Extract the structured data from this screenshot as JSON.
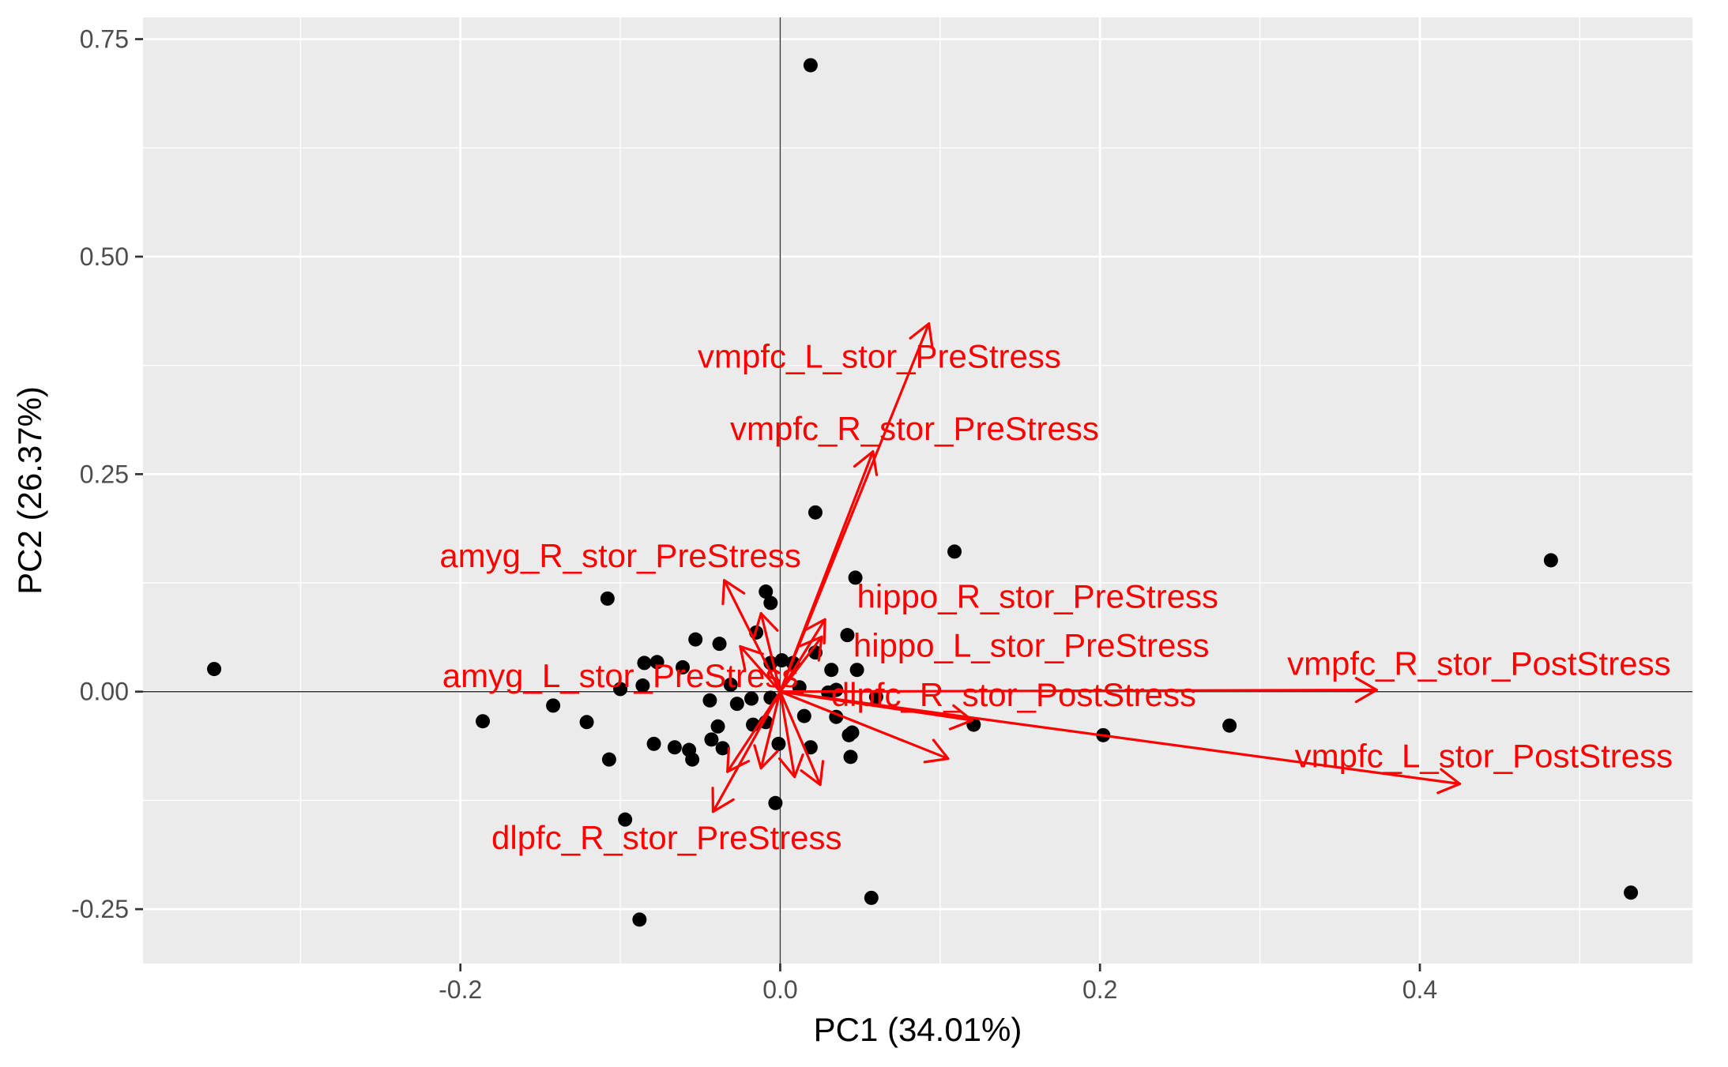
{
  "chart_data": {
    "type": "scatter",
    "title": "",
    "xlabel": "PC1 (34.01%)",
    "ylabel": "PC2 (26.37%)",
    "xlim": [
      -0.3985,
      0.5705
    ],
    "ylim": [
      -0.3125,
      0.775
    ],
    "x_ticks": [
      {
        "value": -0.2,
        "label": "-0.2"
      },
      {
        "value": 0.0,
        "label": "0.0"
      },
      {
        "value": 0.2,
        "label": "0.2"
      },
      {
        "value": 0.4,
        "label": "0.4"
      }
    ],
    "y_ticks": [
      {
        "value": -0.25,
        "label": "-0.25"
      },
      {
        "value": 0.0,
        "label": "0.00"
      },
      {
        "value": 0.25,
        "label": "0.25"
      },
      {
        "value": 0.5,
        "label": "0.50"
      },
      {
        "value": 0.75,
        "label": "0.75"
      }
    ],
    "grid": true,
    "legend": "none",
    "colors": {
      "panel": "#ebebeb",
      "grid": "#ffffff",
      "points": "#000000",
      "loadings": "#ff0000",
      "zero_lines": "#333333"
    },
    "points": [
      {
        "x": 0.019,
        "y": 0.72
      },
      {
        "x": -0.354,
        "y": 0.026
      },
      {
        "x": 0.022,
        "y": 0.206
      },
      {
        "x": 0.109,
        "y": 0.161
      },
      {
        "x": -0.108,
        "y": 0.107
      },
      {
        "x": 0.047,
        "y": 0.131
      },
      {
        "x": -0.009,
        "y": 0.115
      },
      {
        "x": -0.006,
        "y": 0.102
      },
      {
        "x": -0.015,
        "y": 0.068
      },
      {
        "x": 0.042,
        "y": 0.065
      },
      {
        "x": -0.053,
        "y": 0.06
      },
      {
        "x": -0.038,
        "y": 0.055
      },
      {
        "x": 0.022,
        "y": 0.045
      },
      {
        "x": -0.085,
        "y": 0.033
      },
      {
        "x": -0.077,
        "y": 0.034
      },
      {
        "x": -0.006,
        "y": 0.033
      },
      {
        "x": 0.001,
        "y": 0.036
      },
      {
        "x": 0.008,
        "y": 0.033
      },
      {
        "x": -0.061,
        "y": 0.028
      },
      {
        "x": 0.032,
        "y": 0.025
      },
      {
        "x": 0.048,
        "y": 0.025
      },
      {
        "x": -0.086,
        "y": 0.007
      },
      {
        "x": -0.1,
        "y": 0.003
      },
      {
        "x": -0.031,
        "y": 0.008
      },
      {
        "x": 0.012,
        "y": 0.005
      },
      {
        "x": 0.03,
        "y": -0.001
      },
      {
        "x": 0.035,
        "y": 0.002
      },
      {
        "x": -0.018,
        "y": -0.008
      },
      {
        "x": -0.027,
        "y": -0.014
      },
      {
        "x": -0.006,
        "y": -0.007
      },
      {
        "x": 0.06,
        "y": -0.006
      },
      {
        "x": -0.044,
        "y": -0.01
      },
      {
        "x": -0.142,
        "y": -0.016
      },
      {
        "x": -0.121,
        "y": -0.035
      },
      {
        "x": -0.186,
        "y": -0.034
      },
      {
        "x": 0.015,
        "y": -0.028
      },
      {
        "x": 0.035,
        "y": -0.029
      },
      {
        "x": -0.009,
        "y": -0.035
      },
      {
        "x": -0.017,
        "y": -0.038
      },
      {
        "x": -0.039,
        "y": -0.04
      },
      {
        "x": 0.045,
        "y": -0.047
      },
      {
        "x": 0.043,
        "y": -0.05
      },
      {
        "x": -0.043,
        "y": -0.055
      },
      {
        "x": 0.121,
        "y": -0.038
      },
      {
        "x": 0.202,
        "y": -0.05
      },
      {
        "x": 0.281,
        "y": -0.039
      },
      {
        "x": -0.079,
        "y": -0.06
      },
      {
        "x": -0.066,
        "y": -0.064
      },
      {
        "x": -0.057,
        "y": -0.067
      },
      {
        "x": -0.036,
        "y": -0.065
      },
      {
        "x": -0.001,
        "y": -0.06
      },
      {
        "x": 0.019,
        "y": -0.064
      },
      {
        "x": -0.055,
        "y": -0.078
      },
      {
        "x": -0.107,
        "y": -0.078
      },
      {
        "x": 0.044,
        "y": -0.075
      },
      {
        "x": -0.003,
        "y": -0.128
      },
      {
        "x": -0.097,
        "y": -0.147
      },
      {
        "x": 0.057,
        "y": -0.237
      },
      {
        "x": -0.088,
        "y": -0.262
      },
      {
        "x": 0.482,
        "y": 0.151
      },
      {
        "x": 0.532,
        "y": -0.231
      }
    ],
    "loadings": [
      {
        "name": "vmpfc_L_stor_PreStress",
        "x": 0.093,
        "y": 0.423
      },
      {
        "name": "vmpfc_R_stor_PreStress",
        "x": 0.058,
        "y": 0.276
      },
      {
        "name": "amyg_R_stor_PreStress",
        "x": -0.035,
        "y": 0.128
      },
      {
        "name": "hippo_R_stor_PreStress",
        "x": -0.012,
        "y": 0.09
      },
      {
        "name": "hippo_L_stor_PreStress",
        "x": 0.028,
        "y": 0.083
      },
      {
        "name": "vmpfc_R_stor_PostStress",
        "x": 0.373,
        "y": 0.002
      },
      {
        "name": "amyg_L_stor_PreStress",
        "x": -0.025,
        "y": 0.052
      },
      {
        "name": "dlpfc_R_stor_PostStress",
        "x": 0.12,
        "y": -0.033
      },
      {
        "name": "vmpfc_L_stor_PostStress",
        "x": 0.425,
        "y": -0.106
      },
      {
        "name": "dlpfc_R_stor_PreStress",
        "x": -0.042,
        "y": -0.138
      },
      {
        "name": "",
        "x": 0.105,
        "y": -0.077
      },
      {
        "name": "",
        "x": -0.033,
        "y": -0.092
      },
      {
        "name": "",
        "x": 0.025,
        "y": -0.107
      },
      {
        "name": "",
        "x": 0.009,
        "y": -0.098
      },
      {
        "name": "",
        "x": 0.026,
        "y": 0.063
      },
      {
        "name": "",
        "x": -0.012,
        "y": -0.088
      }
    ],
    "loading_labels": [
      {
        "text": "vmpfc_L_stor_PreStress",
        "x": 0.062,
        "y": 0.385
      },
      {
        "text": "vmpfc_R_stor_PreStress",
        "x": 0.084,
        "y": 0.302
      },
      {
        "text": "amyg_R_stor_PreStress",
        "x": -0.1,
        "y": 0.156
      },
      {
        "text": "hippo_R_stor_PreStress",
        "x": 0.161,
        "y": 0.109
      },
      {
        "text": "hippo_L_stor_PreStress",
        "x": 0.157,
        "y": 0.053
      },
      {
        "text": "vmpfc_R_stor_PostStress",
        "x": 0.437,
        "y": 0.032
      },
      {
        "text": "amyg_L_stor_PreStress",
        "x": -0.1,
        "y": 0.018
      },
      {
        "text": "dlpfc_R_stor_PostStress",
        "x": 0.146,
        "y": -0.004
      },
      {
        "text": "vmpfc_L_stor_PostStress",
        "x": 0.44,
        "y": -0.074
      },
      {
        "text": "dlpfc_R_stor_PreStress",
        "x": -0.071,
        "y": -0.168
      }
    ]
  }
}
